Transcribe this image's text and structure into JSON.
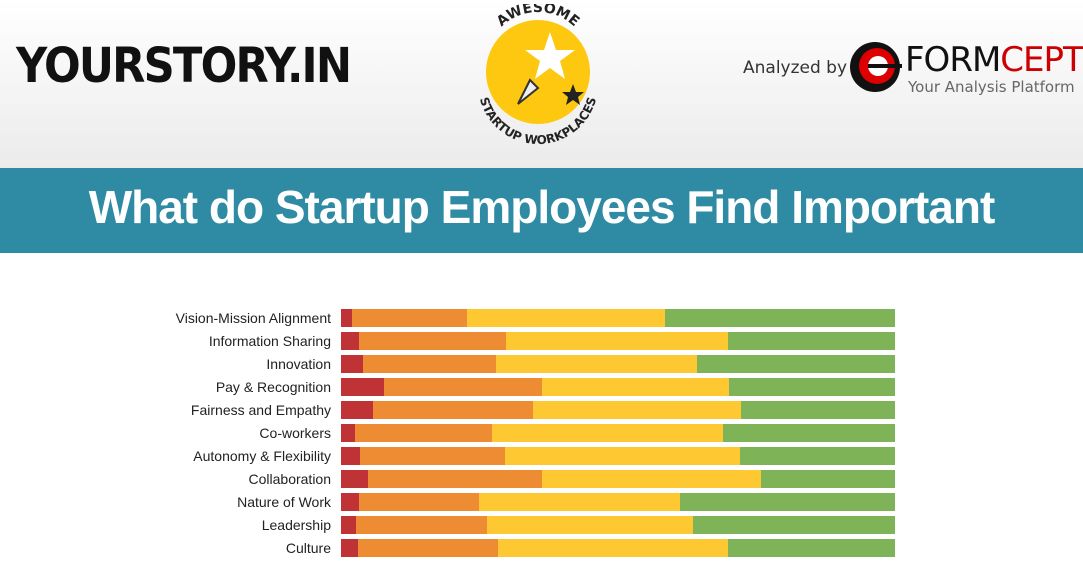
{
  "header": {
    "left_logo": "YOURSTORY.IN",
    "center_logo": {
      "top": "AWESOME",
      "bottom": "STARTUP WORKPLACES"
    },
    "analyzed_by": "Analyzed by",
    "brand": {
      "name_black": "FORM",
      "name_red": "CEPT",
      "tagline": "Your Analysis Platform"
    }
  },
  "banner": {
    "title": "What do Startup Employees Find Important",
    "color": "#2e8ba3"
  },
  "chart_data": {
    "type": "bar",
    "orientation": "horizontal",
    "stacked": "100%",
    "title": "",
    "xlabel": "",
    "ylabel": "",
    "xlim": [
      0,
      100
    ],
    "grid": false,
    "legend": "none",
    "categories": [
      "Vision-Mission Alignment",
      "Information Sharing",
      "Innovation",
      "Pay & Recognition",
      "Fairness and Empathy",
      "Co-workers",
      "Autonomy & Flexibility",
      "Collaboration",
      "Nature of Work",
      "Leadership",
      "Culture"
    ],
    "series": [
      {
        "color": "#bf3336",
        "values": [
          1.9,
          3.3,
          4.0,
          7.7,
          5.7,
          2.6,
          3.4,
          4.9,
          3.2,
          2.7,
          3.1
        ]
      },
      {
        "color": "#ee8c33",
        "values": [
          20.8,
          26.5,
          24.0,
          28.5,
          28.9,
          24.6,
          26.2,
          31.4,
          21.7,
          23.6,
          25.2
        ]
      },
      {
        "color": "#fec832",
        "values": [
          35.8,
          40.0,
          36.3,
          33.9,
          37.5,
          41.7,
          42.5,
          39.5,
          36.3,
          37.2,
          41.5
        ]
      },
      {
        "color": "#7eb457",
        "values": [
          41.5,
          30.2,
          35.7,
          29.9,
          27.8,
          31.1,
          27.9,
          24.2,
          38.8,
          36.5,
          30.1
        ]
      }
    ]
  }
}
